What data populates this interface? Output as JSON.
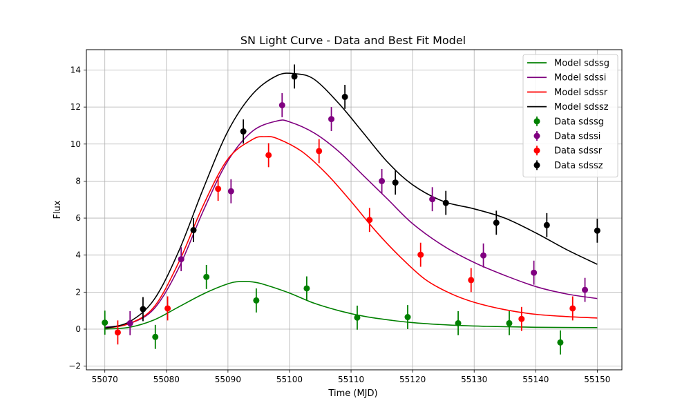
{
  "chart_data": {
    "type": "line",
    "title": "SN Light Curve - Data and Best Fit Model",
    "xlabel": "Time (MJD)",
    "ylabel": "Flux",
    "xlim": [
      55067,
      55154
    ],
    "ylim": [
      -2.2,
      15.1
    ],
    "xticks": [
      55070,
      55080,
      55090,
      55100,
      55110,
      55120,
      55130,
      55140,
      55150
    ],
    "yticks": [
      -2,
      0,
      2,
      4,
      6,
      8,
      10,
      12,
      14
    ],
    "grid": true,
    "legend_position": "top-right",
    "model_series": [
      {
        "name": "Model sdssg",
        "color": "#008000",
        "x": [
          55070,
          55074,
          55078,
          55082,
          55086,
          55090,
          55092,
          55094,
          55096,
          55100,
          55104,
          55108,
          55112,
          55116,
          55120,
          55126,
          55132,
          55140,
          55150
        ],
        "y": [
          0.0,
          0.1,
          0.5,
          1.2,
          1.9,
          2.45,
          2.57,
          2.55,
          2.4,
          1.95,
          1.4,
          1.0,
          0.7,
          0.5,
          0.35,
          0.22,
          0.15,
          0.1,
          0.08
        ]
      },
      {
        "name": "Model sdssi",
        "color": "#800080",
        "x": [
          55070,
          55074,
          55078,
          55082,
          55086,
          55090,
          55094,
          55098,
          55100,
          55104,
          55108,
          55112,
          55116,
          55120,
          55125,
          55130,
          55135,
          55140,
          55145,
          55150
        ],
        "y": [
          0.1,
          0.3,
          1.1,
          3.3,
          6.4,
          9.1,
          10.7,
          11.25,
          11.2,
          10.6,
          9.6,
          8.3,
          7.0,
          5.7,
          4.5,
          3.6,
          2.9,
          2.3,
          1.9,
          1.65
        ]
      },
      {
        "name": "Model sdssr",
        "color": "#ff0000",
        "x": [
          55070,
          55074,
          55078,
          55082,
          55086,
          55090,
          55094,
          55096,
          55098,
          55102,
          55106,
          55110,
          55114,
          55118,
          55122,
          55126,
          55130,
          55135,
          55140,
          55145,
          55150
        ],
        "y": [
          0.05,
          0.3,
          1.2,
          3.6,
          6.7,
          9.2,
          10.25,
          10.4,
          10.3,
          9.6,
          8.4,
          6.9,
          5.3,
          3.9,
          2.7,
          1.95,
          1.45,
          1.05,
          0.8,
          0.68,
          0.6
        ]
      },
      {
        "name": "Model sdssz",
        "color": "#000000",
        "x": [
          55070,
          55074,
          55078,
          55082,
          55086,
          55090,
          55094,
          55098,
          55101,
          55104,
          55108,
          55112,
          55116,
          55120,
          55125,
          55130,
          55135,
          55140,
          55145,
          55150
        ],
        "y": [
          0.05,
          0.4,
          1.6,
          4.2,
          7.6,
          10.7,
          12.7,
          13.7,
          13.8,
          13.5,
          12.2,
          10.6,
          9.0,
          7.8,
          6.9,
          6.5,
          6.0,
          5.2,
          4.3,
          3.5
        ]
      }
    ],
    "data_series": [
      {
        "name": "Data sdssg",
        "color": "#008000",
        "points": [
          {
            "x": 55070,
            "y": 0.35,
            "err": 0.65
          },
          {
            "x": 55078.2,
            "y": -0.42,
            "err": 0.65
          },
          {
            "x": 55086.5,
            "y": 2.82,
            "err": 0.65
          },
          {
            "x": 55094.6,
            "y": 1.55,
            "err": 0.65
          },
          {
            "x": 55102.8,
            "y": 2.2,
            "err": 0.65
          },
          {
            "x": 55111,
            "y": 0.62,
            "err": 0.65
          },
          {
            "x": 55119.2,
            "y": 0.65,
            "err": 0.65
          },
          {
            "x": 55127.4,
            "y": 0.32,
            "err": 0.65
          },
          {
            "x": 55135.7,
            "y": 0.32,
            "err": 0.65
          },
          {
            "x": 55144,
            "y": -0.72,
            "err": 0.65
          }
        ]
      },
      {
        "name": "Data sdssi",
        "color": "#800080",
        "points": [
          {
            "x": 55074.1,
            "y": 0.32,
            "err": 0.65
          },
          {
            "x": 55082.4,
            "y": 3.78,
            "err": 0.65
          },
          {
            "x": 55090.5,
            "y": 7.45,
            "err": 0.65
          },
          {
            "x": 55098.8,
            "y": 12.1,
            "err": 0.65
          },
          {
            "x": 55106.8,
            "y": 11.35,
            "err": 0.65
          },
          {
            "x": 55115,
            "y": 8.0,
            "err": 0.65
          },
          {
            "x": 55123.2,
            "y": 7.02,
            "err": 0.65
          },
          {
            "x": 55131.5,
            "y": 3.98,
            "err": 0.65
          },
          {
            "x": 55139.7,
            "y": 3.05,
            "err": 0.65
          },
          {
            "x": 55148,
            "y": 2.12,
            "err": 0.65
          }
        ]
      },
      {
        "name": "Data sdssr",
        "color": "#ff0000",
        "points": [
          {
            "x": 55072.1,
            "y": -0.18,
            "err": 0.65
          },
          {
            "x": 55080.2,
            "y": 1.12,
            "err": 0.65
          },
          {
            "x": 55088.4,
            "y": 7.58,
            "err": 0.65
          },
          {
            "x": 55096.6,
            "y": 9.4,
            "err": 0.65
          },
          {
            "x": 55104.8,
            "y": 9.62,
            "err": 0.65
          },
          {
            "x": 55113,
            "y": 5.9,
            "err": 0.65
          },
          {
            "x": 55121.3,
            "y": 4.02,
            "err": 0.65
          },
          {
            "x": 55129.5,
            "y": 2.65,
            "err": 0.65
          },
          {
            "x": 55137.7,
            "y": 0.55,
            "err": 0.65
          },
          {
            "x": 55146,
            "y": 1.12,
            "err": 0.65
          }
        ]
      },
      {
        "name": "Data sdssz",
        "color": "#000000",
        "points": [
          {
            "x": 55076.2,
            "y": 1.08,
            "err": 0.65
          },
          {
            "x": 55084.4,
            "y": 5.35,
            "err": 0.65
          },
          {
            "x": 55092.5,
            "y": 10.68,
            "err": 0.65
          },
          {
            "x": 55100.8,
            "y": 13.65,
            "err": 0.65
          },
          {
            "x": 55109,
            "y": 12.55,
            "err": 0.65
          },
          {
            "x": 55117.2,
            "y": 7.92,
            "err": 0.65
          },
          {
            "x": 55125.4,
            "y": 6.82,
            "err": 0.65
          },
          {
            "x": 55133.6,
            "y": 5.75,
            "err": 0.65
          },
          {
            "x": 55141.8,
            "y": 5.62,
            "err": 0.65
          },
          {
            "x": 55150,
            "y": 5.32,
            "err": 0.65
          }
        ]
      }
    ]
  }
}
